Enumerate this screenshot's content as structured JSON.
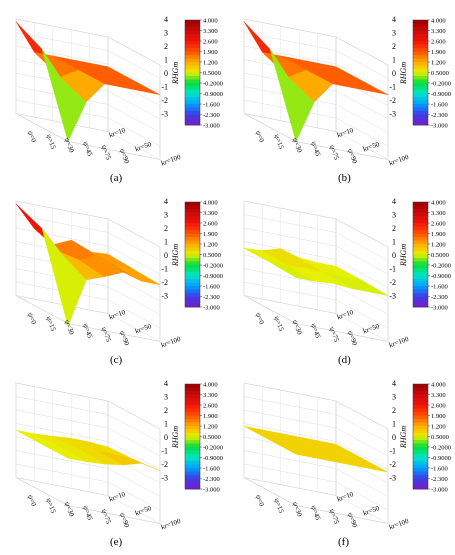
{
  "figure": {
    "panel_labels": [
      "(a)",
      "(b)",
      "(c)",
      "(d)",
      "(e)",
      "(f)"
    ]
  },
  "chart_data": [
    {
      "panel": "(a)",
      "type": "surface3d",
      "x_ticks": [
        "ψ=0",
        "ψ=15",
        "ψ=30",
        "ψ=45",
        "ψ=75",
        "ψ=90"
      ],
      "y_ticks": [
        "kr=10",
        "kr=50",
        "kr=100"
      ],
      "z_ticks": [
        "4",
        "3",
        "2",
        "1",
        "0",
        "-1",
        "-2",
        "-3"
      ],
      "zlim": [
        -3,
        4
      ],
      "colorbar_label": "RHGm",
      "colorbar_ticks": [
        "4.000",
        "3.300",
        "2.600",
        "1.900",
        "1.200",
        "0.5000",
        "-0.2000",
        "-0.9000",
        "-1.600",
        "-2.300",
        "-3.000"
      ],
      "z": [
        [
          3.8,
          1.8,
          1.8,
          1.8,
          1.8,
          1.8
        ],
        [
          2.8,
          1.0,
          1.8,
          1.8,
          1.8,
          1.8
        ],
        [
          -3.0,
          0.2,
          1.8,
          1.8,
          1.8,
          1.8
        ]
      ]
    },
    {
      "panel": "(b)",
      "type": "surface3d",
      "x_ticks": [
        "ψ=0",
        "ψ=15",
        "ψ=30",
        "ψ=45",
        "ψ=75",
        "ψ=90"
      ],
      "y_ticks": [
        "kr=10",
        "kr=50",
        "kr=100"
      ],
      "z_ticks": [
        "4",
        "3",
        "2",
        "1",
        "0",
        "-1",
        "-2",
        "-3"
      ],
      "zlim": [
        -3,
        4
      ],
      "colorbar_label": "RHGm",
      "colorbar_ticks": [
        "4.000",
        "3.300",
        "2.600",
        "1.900",
        "1.200",
        "0.5000",
        "-0.2000",
        "-0.9000",
        "-1.600",
        "-2.300",
        "-3.000"
      ],
      "z": [
        [
          3.8,
          1.8,
          1.8,
          1.8,
          1.8,
          1.8
        ],
        [
          2.8,
          1.0,
          1.8,
          1.8,
          1.8,
          1.8
        ],
        [
          -3.0,
          0.2,
          1.8,
          1.8,
          1.8,
          1.8
        ]
      ]
    },
    {
      "panel": "(c)",
      "type": "surface3d",
      "x_ticks": [
        "ψ=0",
        "ψ=15",
        "ψ=30",
        "ψ=45",
        "ψ=75",
        "ψ=90"
      ],
      "y_ticks": [
        "kr=10",
        "kr=50",
        "kr=100"
      ],
      "z_ticks": [
        "4",
        "3",
        "2",
        "1",
        "0",
        "-1",
        "-2",
        "-3"
      ],
      "zlim": [
        -3,
        4
      ],
      "colorbar_label": "RHGm",
      "colorbar_ticks": [
        "4.000",
        "3.300",
        "2.600",
        "1.900",
        "1.200",
        "0.5000",
        "-0.2000",
        "-0.9000",
        "-1.600",
        "-2.300",
        "-3.000"
      ],
      "z": [
        [
          3.8,
          2.2,
          1.3,
          1.9,
          1.3,
          1.4
        ],
        [
          3.0,
          1.5,
          1.2,
          1.8,
          1.3,
          1.3
        ],
        [
          -3.2,
          0.5,
          1.0,
          1.6,
          1.2,
          1.2
        ]
      ]
    },
    {
      "panel": "(d)",
      "type": "surface3d",
      "x_ticks": [
        "ψ=0",
        "ψ=15",
        "ψ=30",
        "ψ=45",
        "ψ=75",
        "ψ=90"
      ],
      "y_ticks": [
        "kr=10",
        "kr=50",
        "kr=100"
      ],
      "z_ticks": [
        "4",
        "3",
        "2",
        "1",
        "0",
        "-1",
        "-2",
        "-3"
      ],
      "zlim": [
        -3,
        4
      ],
      "colorbar_label": "RHGm",
      "colorbar_ticks": [
        "4.000",
        "3.300",
        "2.600",
        "1.900",
        "1.200",
        "0.5000",
        "-0.2000",
        "-0.9000",
        "-1.600",
        "-2.300",
        "-3.000"
      ],
      "z": [
        [
          0.5,
          0.6,
          1.0,
          0.6,
          0.5,
          0.5
        ],
        [
          0.5,
          0.5,
          0.6,
          0.5,
          0.5,
          0.5
        ],
        [
          0.4,
          0.4,
          0.5,
          0.4,
          0.4,
          0.4
        ]
      ]
    },
    {
      "panel": "(e)",
      "type": "surface3d",
      "x_ticks": [
        "ψ=0",
        "ψ=15",
        "ψ=30",
        "ψ=45",
        "ψ=75",
        "ψ=90"
      ],
      "y_ticks": [
        "kr=10",
        "kr=50",
        "kr=100"
      ],
      "z_ticks": [
        "4",
        "3",
        "2",
        "1",
        "0",
        "-1",
        "-2",
        "-3"
      ],
      "zlim": [
        -3,
        4
      ],
      "colorbar_label": "RHGm",
      "colorbar_ticks": [
        "4.000",
        "3.300",
        "2.600",
        "1.900",
        "1.200",
        "0.5000",
        "-0.2000",
        "-0.9000",
        "-1.600",
        "-2.300",
        "-3.000"
      ],
      "z": [
        [
          0.5,
          0.5,
          0.6,
          0.7,
          0.7,
          0.6
        ],
        [
          0.5,
          0.6,
          0.7,
          0.8,
          0.8,
          0.7
        ],
        [
          0.5,
          0.5,
          0.6,
          0.8,
          1.2,
          0.9
        ]
      ]
    },
    {
      "panel": "(f)",
      "type": "surface3d",
      "x_ticks": [
        "ψ=0",
        "ψ=15",
        "ψ=30",
        "ψ=45",
        "ψ=75",
        "ψ=90"
      ],
      "y_ticks": [
        "kr=10",
        "kr=50",
        "kr=100"
      ],
      "z_ticks": [
        "4",
        "3",
        "2",
        "1",
        "0",
        "-1",
        "-2",
        "-3"
      ],
      "zlim": [
        -3,
        4
      ],
      "colorbar_label": "RHGm",
      "colorbar_ticks": [
        "4.000",
        "3.300",
        "2.600",
        "1.900",
        "1.200",
        "0.5000",
        "-0.2000",
        "-0.9000",
        "-1.600",
        "-2.300",
        "-3.000"
      ],
      "z": [
        [
          0.8,
          0.8,
          0.8,
          0.8,
          0.8,
          0.8
        ],
        [
          0.8,
          0.8,
          0.8,
          0.8,
          0.8,
          0.8
        ],
        [
          0.8,
          0.8,
          0.8,
          0.8,
          0.8,
          0.8
        ]
      ]
    }
  ]
}
